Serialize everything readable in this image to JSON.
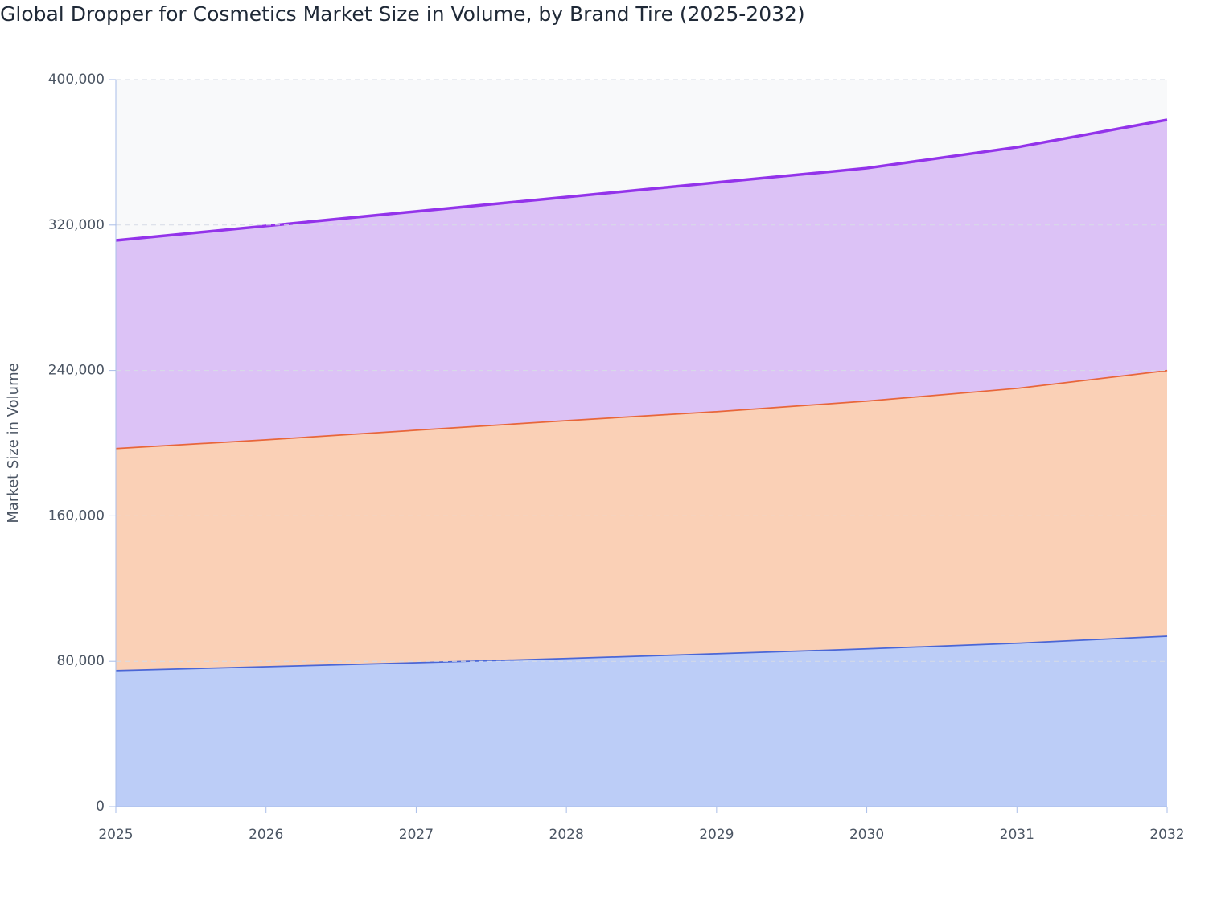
{
  "chart_data": {
    "type": "stacked-area",
    "title": "Global Dropper for Cosmetics Market Size in Volume, by Brand Tire (2025-2032)",
    "y_label": "Market Size in Volume",
    "x": [
      2025,
      2026,
      2027,
      2028,
      2029,
      2030,
      2031,
      2032
    ],
    "xlim": [
      2025,
      2032
    ],
    "xticks": [
      2025,
      2026,
      2027,
      2028,
      2029,
      2030,
      2031,
      2032
    ],
    "ylim": [
      0,
      400000
    ],
    "yticks": [
      0,
      {
        "value": 80000,
        "label": "80,000"
      },
      {
        "value": 160000,
        "label": "160,000"
      },
      {
        "value": 240000,
        "label": "240,000"
      },
      {
        "value": 320000,
        "label": "320,000"
      },
      {
        "value": 400000,
        "label": "400,000"
      }
    ],
    "grid": true,
    "series": [
      {
        "color": "#4a66d6",
        "fill": "#bccdf7",
        "values": [
          75200,
          77400,
          79600,
          81900,
          84500,
          87200,
          90300,
          94200
        ]
      },
      {
        "color": "#e8663a",
        "fill": "#fad0b6",
        "values": [
          122200,
          124800,
          127900,
          130900,
          133200,
          136300,
          140200,
          146100
        ]
      },
      {
        "color": "#9333ea",
        "fill": "#dcc2f6",
        "values": [
          114100,
          117300,
          120000,
          122600,
          125700,
          127800,
          132300,
          137600
        ]
      }
    ]
  }
}
